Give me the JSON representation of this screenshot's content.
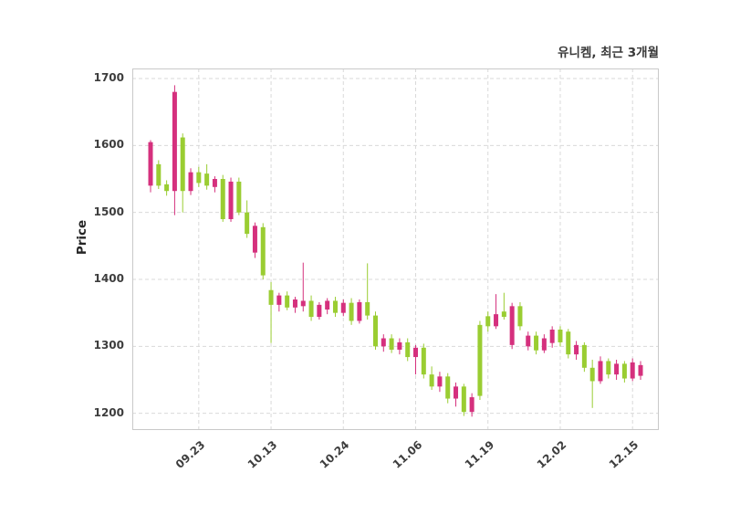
{
  "title": "유니켐, 최근 3개월",
  "chart_data": {
    "type": "candlestick",
    "title": "유니켐, 최근 3개월",
    "xlabel": "",
    "ylabel": "Price",
    "y_ticks": [
      1700,
      1600,
      1500,
      1400,
      1300,
      1200
    ],
    "ylim": [
      1175,
      1715
    ],
    "grid": "dashed",
    "up_color": "#d5307d",
    "down_color": "#9acd32",
    "grid_color": "#d9d9d9",
    "border_color": "#c9c9c9",
    "x_ticks": [
      {
        "label": "09.23",
        "index": 6
      },
      {
        "label": "10.13",
        "index": 15
      },
      {
        "label": "10.24",
        "index": 24
      },
      {
        "label": "11.06",
        "index": 33
      },
      {
        "label": "11.19",
        "index": 42
      },
      {
        "label": "12.02",
        "index": 51
      },
      {
        "label": "12.15",
        "index": 60
      }
    ],
    "candles": [
      [
        1540,
        1608,
        1530,
        1605
      ],
      [
        1572,
        1578,
        1535,
        1540
      ],
      [
        1542,
        1548,
        1525,
        1532
      ],
      [
        1532,
        1690,
        1496,
        1680
      ],
      [
        1612,
        1618,
        1500,
        1532
      ],
      [
        1532,
        1566,
        1526,
        1560
      ],
      [
        1560,
        1568,
        1538,
        1544
      ],
      [
        1558,
        1572,
        1534,
        1540
      ],
      [
        1538,
        1554,
        1530,
        1550
      ],
      [
        1550,
        1556,
        1486,
        1490
      ],
      [
        1490,
        1552,
        1486,
        1546
      ],
      [
        1546,
        1552,
        1496,
        1500
      ],
      [
        1500,
        1518,
        1462,
        1468
      ],
      [
        1440,
        1485,
        1432,
        1480
      ],
      [
        1478,
        1484,
        1400,
        1406
      ],
      [
        1384,
        1396,
        1305,
        1362
      ],
      [
        1362,
        1380,
        1352,
        1376
      ],
      [
        1376,
        1382,
        1354,
        1358
      ],
      [
        1358,
        1374,
        1350,
        1370
      ],
      [
        1360,
        1425,
        1352,
        1368
      ],
      [
        1368,
        1376,
        1338,
        1344
      ],
      [
        1344,
        1366,
        1340,
        1362
      ],
      [
        1355,
        1372,
        1348,
        1368
      ],
      [
        1368,
        1374,
        1344,
        1350
      ],
      [
        1350,
        1370,
        1345,
        1365
      ],
      [
        1365,
        1372,
        1332,
        1338
      ],
      [
        1338,
        1370,
        1334,
        1366
      ],
      [
        1366,
        1424,
        1340,
        1346
      ],
      [
        1346,
        1352,
        1295,
        1300
      ],
      [
        1300,
        1318,
        1292,
        1312
      ],
      [
        1312,
        1318,
        1290,
        1295
      ],
      [
        1295,
        1312,
        1288,
        1306
      ],
      [
        1306,
        1312,
        1278,
        1284
      ],
      [
        1284,
        1302,
        1258,
        1298
      ],
      [
        1298,
        1304,
        1252,
        1258
      ],
      [
        1258,
        1270,
        1235,
        1240
      ],
      [
        1240,
        1262,
        1232,
        1255
      ],
      [
        1255,
        1260,
        1215,
        1222
      ],
      [
        1222,
        1246,
        1210,
        1240
      ],
      [
        1240,
        1244,
        1196,
        1202
      ],
      [
        1202,
        1230,
        1195,
        1224
      ],
      [
        1332,
        1338,
        1220,
        1226
      ],
      [
        1345,
        1352,
        1322,
        1330
      ],
      [
        1330,
        1378,
        1326,
        1348
      ],
      [
        1352,
        1380,
        1340,
        1344
      ],
      [
        1302,
        1365,
        1296,
        1360
      ],
      [
        1360,
        1366,
        1324,
        1330
      ],
      [
        1300,
        1322,
        1294,
        1316
      ],
      [
        1316,
        1322,
        1288,
        1294
      ],
      [
        1294,
        1318,
        1290,
        1312
      ],
      [
        1305,
        1330,
        1298,
        1325
      ],
      [
        1325,
        1330,
        1300,
        1306
      ],
      [
        1322,
        1326,
        1282,
        1288
      ],
      [
        1288,
        1308,
        1280,
        1302
      ],
      [
        1302,
        1306,
        1262,
        1268
      ],
      [
        1268,
        1280,
        1208,
        1248
      ],
      [
        1248,
        1285,
        1244,
        1278
      ],
      [
        1278,
        1282,
        1252,
        1258
      ],
      [
        1258,
        1280,
        1250,
        1274
      ],
      [
        1274,
        1278,
        1246,
        1252
      ],
      [
        1252,
        1282,
        1248,
        1276
      ],
      [
        1256,
        1278,
        1250,
        1272
      ]
    ]
  }
}
